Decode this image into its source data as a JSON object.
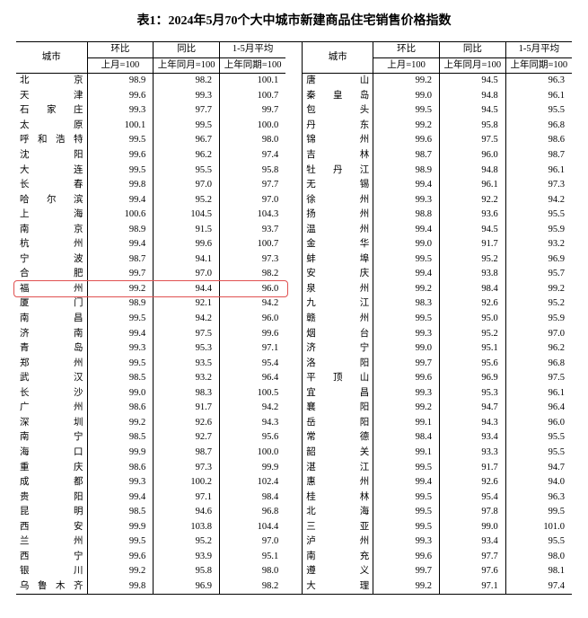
{
  "title": "表1：2024年5月70个大中城市新建商品住宅销售价格指数",
  "headers": {
    "city": "城市",
    "hb": "环比",
    "tb": "同比",
    "avg": "1-5月平均",
    "hb_sub": "上月=100",
    "tb_sub": "上年同月=100",
    "avg_sub": "上年同期=100"
  },
  "highlight_row_index": 14,
  "highlight_color": "#e05050",
  "rows_left": [
    {
      "city": "北　　京",
      "hb": "98.9",
      "tb": "98.2",
      "avg": "100.1"
    },
    {
      "city": "天　　津",
      "hb": "99.6",
      "tb": "99.3",
      "avg": "100.7"
    },
    {
      "city": "石 家 庄",
      "hb": "99.3",
      "tb": "97.7",
      "avg": "99.7"
    },
    {
      "city": "太　　原",
      "hb": "100.1",
      "tb": "99.5",
      "avg": "100.0"
    },
    {
      "city": "呼和浩特",
      "hb": "99.5",
      "tb": "96.7",
      "avg": "98.0"
    },
    {
      "city": "沈　　阳",
      "hb": "99.6",
      "tb": "96.2",
      "avg": "97.4"
    },
    {
      "city": "大　　连",
      "hb": "99.5",
      "tb": "95.5",
      "avg": "95.8"
    },
    {
      "city": "长　　春",
      "hb": "99.8",
      "tb": "97.0",
      "avg": "97.7"
    },
    {
      "city": "哈 尔 滨",
      "hb": "99.4",
      "tb": "95.2",
      "avg": "97.0"
    },
    {
      "city": "上　　海",
      "hb": "100.6",
      "tb": "104.5",
      "avg": "104.3"
    },
    {
      "city": "南　　京",
      "hb": "98.9",
      "tb": "91.5",
      "avg": "93.7"
    },
    {
      "city": "杭　　州",
      "hb": "99.4",
      "tb": "99.6",
      "avg": "100.7"
    },
    {
      "city": "宁　　波",
      "hb": "98.7",
      "tb": "94.1",
      "avg": "97.3"
    },
    {
      "city": "合　　肥",
      "hb": "99.7",
      "tb": "97.0",
      "avg": "98.2"
    },
    {
      "city": "福　　州",
      "hb": "99.2",
      "tb": "94.4",
      "avg": "96.0"
    },
    {
      "city": "厦　　门",
      "hb": "98.9",
      "tb": "92.1",
      "avg": "94.2"
    },
    {
      "city": "南　　昌",
      "hb": "99.5",
      "tb": "94.2",
      "avg": "96.0"
    },
    {
      "city": "济　　南",
      "hb": "99.4",
      "tb": "97.5",
      "avg": "99.6"
    },
    {
      "city": "青　　岛",
      "hb": "99.3",
      "tb": "95.3",
      "avg": "97.1"
    },
    {
      "city": "郑　　州",
      "hb": "99.5",
      "tb": "93.5",
      "avg": "95.4"
    },
    {
      "city": "武　　汉",
      "hb": "98.5",
      "tb": "93.2",
      "avg": "96.4"
    },
    {
      "city": "长　　沙",
      "hb": "99.0",
      "tb": "98.3",
      "avg": "100.5"
    },
    {
      "city": "广　　州",
      "hb": "98.6",
      "tb": "91.7",
      "avg": "94.2"
    },
    {
      "city": "深　　圳",
      "hb": "99.2",
      "tb": "92.6",
      "avg": "94.3"
    },
    {
      "city": "南　　宁",
      "hb": "98.5",
      "tb": "92.7",
      "avg": "95.6"
    },
    {
      "city": "海　　口",
      "hb": "99.9",
      "tb": "98.7",
      "avg": "100.0"
    },
    {
      "city": "重　　庆",
      "hb": "98.6",
      "tb": "97.3",
      "avg": "99.9"
    },
    {
      "city": "成　　都",
      "hb": "99.3",
      "tb": "100.2",
      "avg": "102.4"
    },
    {
      "city": "贵　　阳",
      "hb": "99.4",
      "tb": "97.1",
      "avg": "98.4"
    },
    {
      "city": "昆　　明",
      "hb": "98.5",
      "tb": "94.6",
      "avg": "96.8"
    },
    {
      "city": "西　　安",
      "hb": "99.9",
      "tb": "103.8",
      "avg": "104.4"
    },
    {
      "city": "兰　　州",
      "hb": "99.5",
      "tb": "95.2",
      "avg": "97.0"
    },
    {
      "city": "西　　宁",
      "hb": "99.6",
      "tb": "93.9",
      "avg": "95.1"
    },
    {
      "city": "银　　川",
      "hb": "99.2",
      "tb": "95.8",
      "avg": "98.0"
    },
    {
      "city": "乌鲁木齐",
      "hb": "99.8",
      "tb": "96.9",
      "avg": "98.2"
    }
  ],
  "rows_right": [
    {
      "city": "唐　　山",
      "hb": "99.2",
      "tb": "94.5",
      "avg": "96.3"
    },
    {
      "city": "秦 皇 岛",
      "hb": "99.0",
      "tb": "94.8",
      "avg": "96.1"
    },
    {
      "city": "包　　头",
      "hb": "99.5",
      "tb": "94.5",
      "avg": "95.5"
    },
    {
      "city": "丹　　东",
      "hb": "99.2",
      "tb": "95.8",
      "avg": "96.8"
    },
    {
      "city": "锦　　州",
      "hb": "99.6",
      "tb": "97.5",
      "avg": "98.6"
    },
    {
      "city": "吉　　林",
      "hb": "98.7",
      "tb": "96.0",
      "avg": "98.7"
    },
    {
      "city": "牡 丹 江",
      "hb": "98.9",
      "tb": "94.8",
      "avg": "96.1"
    },
    {
      "city": "无　　锡",
      "hb": "99.4",
      "tb": "96.1",
      "avg": "97.3"
    },
    {
      "city": "徐　　州",
      "hb": "99.3",
      "tb": "92.2",
      "avg": "94.2"
    },
    {
      "city": "扬　　州",
      "hb": "98.8",
      "tb": "93.6",
      "avg": "95.5"
    },
    {
      "city": "温　　州",
      "hb": "99.4",
      "tb": "94.5",
      "avg": "95.9"
    },
    {
      "city": "金　　华",
      "hb": "99.0",
      "tb": "91.7",
      "avg": "93.2"
    },
    {
      "city": "蚌　　埠",
      "hb": "99.5",
      "tb": "95.2",
      "avg": "96.9"
    },
    {
      "city": "安　　庆",
      "hb": "99.4",
      "tb": "93.8",
      "avg": "95.7"
    },
    {
      "city": "泉　　州",
      "hb": "99.2",
      "tb": "98.4",
      "avg": "99.2"
    },
    {
      "city": "九　　江",
      "hb": "98.3",
      "tb": "92.6",
      "avg": "95.2"
    },
    {
      "city": "赣　　州",
      "hb": "99.5",
      "tb": "95.0",
      "avg": "95.9"
    },
    {
      "city": "烟　　台",
      "hb": "99.3",
      "tb": "95.2",
      "avg": "97.0"
    },
    {
      "city": "济　　宁",
      "hb": "99.0",
      "tb": "95.1",
      "avg": "96.2"
    },
    {
      "city": "洛　　阳",
      "hb": "99.7",
      "tb": "95.6",
      "avg": "96.8"
    },
    {
      "city": "平 顶 山",
      "hb": "99.6",
      "tb": "96.9",
      "avg": "97.5"
    },
    {
      "city": "宜　　昌",
      "hb": "99.3",
      "tb": "95.3",
      "avg": "96.1"
    },
    {
      "city": "襄　　阳",
      "hb": "99.2",
      "tb": "94.7",
      "avg": "96.4"
    },
    {
      "city": "岳　　阳",
      "hb": "99.1",
      "tb": "94.3",
      "avg": "96.0"
    },
    {
      "city": "常　　德",
      "hb": "98.4",
      "tb": "93.4",
      "avg": "95.5"
    },
    {
      "city": "韶　　关",
      "hb": "99.1",
      "tb": "93.3",
      "avg": "95.5"
    },
    {
      "city": "湛　　江",
      "hb": "99.5",
      "tb": "91.7",
      "avg": "94.7"
    },
    {
      "city": "惠　　州",
      "hb": "99.4",
      "tb": "92.6",
      "avg": "94.0"
    },
    {
      "city": "桂　　林",
      "hb": "99.5",
      "tb": "95.4",
      "avg": "96.3"
    },
    {
      "city": "北　　海",
      "hb": "99.5",
      "tb": "97.8",
      "avg": "99.5"
    },
    {
      "city": "三　　亚",
      "hb": "99.5",
      "tb": "99.0",
      "avg": "101.0"
    },
    {
      "city": "泸　　州",
      "hb": "99.3",
      "tb": "93.4",
      "avg": "95.5"
    },
    {
      "city": "南　　充",
      "hb": "99.6",
      "tb": "97.7",
      "avg": "98.0"
    },
    {
      "city": "遵　　义",
      "hb": "99.7",
      "tb": "97.6",
      "avg": "98.1"
    },
    {
      "city": "大　　理",
      "hb": "99.2",
      "tb": "97.1",
      "avg": "97.4"
    }
  ]
}
